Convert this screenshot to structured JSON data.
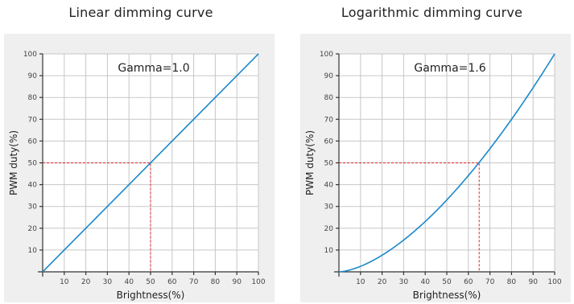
{
  "chart_data": [
    {
      "type": "line",
      "title": "Linear dimming curve",
      "xlabel": "Brightness(%)",
      "ylabel": "PWM duty(%)",
      "xlim": [
        0,
        100
      ],
      "ylim": [
        0,
        100
      ],
      "xticks": [
        10,
        20,
        30,
        40,
        50,
        60,
        70,
        80,
        90,
        100
      ],
      "yticks": [
        10,
        20,
        30,
        40,
        50,
        60,
        70,
        80,
        90,
        100
      ],
      "grid": true,
      "annotation": "Gamma=1.0",
      "gamma": 1.0,
      "series": [
        {
          "x": [
            0,
            10,
            20,
            30,
            40,
            50,
            60,
            70,
            80,
            90,
            100
          ],
          "y": [
            0,
            10,
            20,
            30,
            40,
            50,
            60,
            70,
            80,
            90,
            100
          ]
        }
      ],
      "reference_point": {
        "x": 50,
        "y": 50
      },
      "colors": {
        "curve": "#1a88c9",
        "reference": "#e0202a"
      }
    },
    {
      "type": "line",
      "title": "Logarithmic dimming curve",
      "xlabel": "Brightness(%)",
      "ylabel": "PWM duty(%)",
      "xlim": [
        0,
        100
      ],
      "ylim": [
        0,
        100
      ],
      "xticks": [
        10,
        20,
        30,
        40,
        50,
        60,
        70,
        80,
        90,
        100
      ],
      "yticks": [
        10,
        20,
        30,
        40,
        50,
        60,
        70,
        80,
        90,
        100
      ],
      "grid": true,
      "annotation": "Gamma=1.6",
      "gamma": 1.6,
      "series": [
        {
          "x": [
            0,
            10,
            20,
            30,
            40,
            50,
            60,
            70,
            80,
            90,
            100
          ],
          "y": [
            0,
            2.5,
            7.6,
            14.5,
            23.1,
            33.0,
            44.2,
            56.5,
            70.0,
            84.5,
            100
          ]
        }
      ],
      "reference_point": {
        "x": 65,
        "y": 50
      },
      "colors": {
        "curve": "#1a88c9",
        "reference": "#e0202a"
      }
    }
  ]
}
